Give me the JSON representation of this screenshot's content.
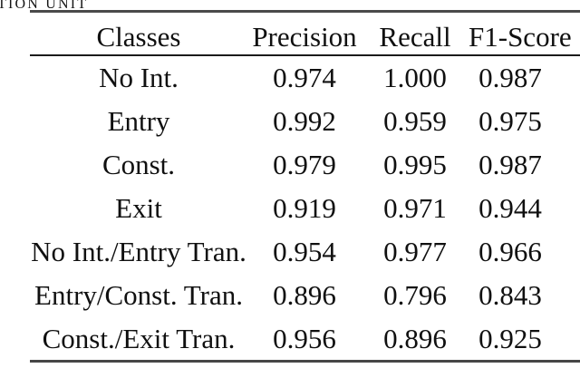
{
  "caption_fragment": "TION UNIT",
  "table": {
    "headers": [
      "Classes",
      "Precision",
      "Recall",
      "F1-Score"
    ],
    "rows": [
      {
        "label": "No Int.",
        "precision": "0.974",
        "recall": "1.000",
        "f1": "0.987"
      },
      {
        "label": "Entry",
        "precision": "0.992",
        "recall": "0.959",
        "f1": "0.975"
      },
      {
        "label": "Const.",
        "precision": "0.979",
        "recall": "0.995",
        "f1": "0.987"
      },
      {
        "label": "Exit",
        "precision": "0.919",
        "recall": "0.971",
        "f1": "0.944"
      },
      {
        "label": "No Int./Entry Tran.",
        "precision": "0.954",
        "recall": "0.977",
        "f1": "0.966"
      },
      {
        "label": "Entry/Const. Tran.",
        "precision": "0.896",
        "recall": "0.796",
        "f1": "0.843"
      },
      {
        "label": "Const./Exit Tran.",
        "precision": "0.956",
        "recall": "0.896",
        "f1": "0.925"
      }
    ]
  },
  "colors": {
    "text": "#101010",
    "rule_outer": "#4a4a4a",
    "rule_inner": "#1b1b1b",
    "background": "#ffffff"
  },
  "chart_data": {
    "type": "table",
    "columns": [
      "Classes",
      "Precision",
      "Recall",
      "F1-Score"
    ],
    "rows": [
      [
        "No Int.",
        0.974,
        1.0,
        0.987
      ],
      [
        "Entry",
        0.992,
        0.959,
        0.975
      ],
      [
        "Const.",
        0.979,
        0.995,
        0.987
      ],
      [
        "Exit",
        0.919,
        0.971,
        0.944
      ],
      [
        "No Int./Entry Tran.",
        0.954,
        0.977,
        0.966
      ],
      [
        "Entry/Const. Tran.",
        0.896,
        0.796,
        0.843
      ],
      [
        "Const./Exit Tran.",
        0.956,
        0.896,
        0.925
      ]
    ]
  }
}
